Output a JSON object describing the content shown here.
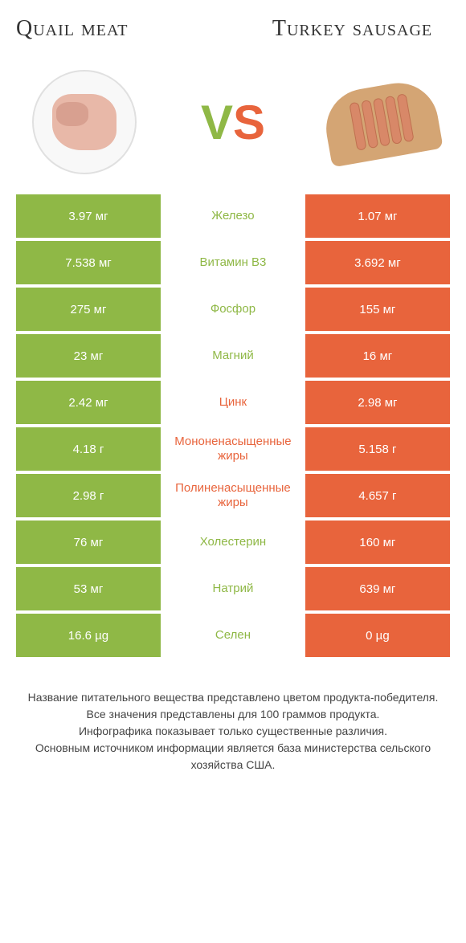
{
  "header": {
    "left_title": "Quail meat",
    "right_title": "Turkey sausage",
    "vs_v": "V",
    "vs_s": "S"
  },
  "colors": {
    "left": "#8fb846",
    "right": "#e8643c",
    "background": "#ffffff"
  },
  "rows": [
    {
      "left": "3.97 мг",
      "label": "Железо",
      "right": "1.07 мг",
      "winner": "left"
    },
    {
      "left": "7.538 мг",
      "label": "Витамин B3",
      "right": "3.692 мг",
      "winner": "left"
    },
    {
      "left": "275 мг",
      "label": "Фосфор",
      "right": "155 мг",
      "winner": "left"
    },
    {
      "left": "23 мг",
      "label": "Магний",
      "right": "16 мг",
      "winner": "left"
    },
    {
      "left": "2.42 мг",
      "label": "Цинк",
      "right": "2.98 мг",
      "winner": "right"
    },
    {
      "left": "4.18 г",
      "label": "Мононенасыщенные жиры",
      "right": "5.158 г",
      "winner": "right"
    },
    {
      "left": "2.98 г",
      "label": "Полиненасыщенные жиры",
      "right": "4.657 г",
      "winner": "right"
    },
    {
      "left": "76 мг",
      "label": "Холестерин",
      "right": "160 мг",
      "winner": "left"
    },
    {
      "left": "53 мг",
      "label": "Натрий",
      "right": "639 мг",
      "winner": "left"
    },
    {
      "left": "16.6 µg",
      "label": "Селен",
      "right": "0 µg",
      "winner": "left"
    }
  ],
  "footer": {
    "line1": "Название питательного вещества представлено цветом продукта-победителя.",
    "line2": "Все значения представлены для 100 граммов продукта.",
    "line3": "Инфографика показывает только существенные различия.",
    "line4": "Основным источником информации является база министерства сельского хозяйства США."
  }
}
